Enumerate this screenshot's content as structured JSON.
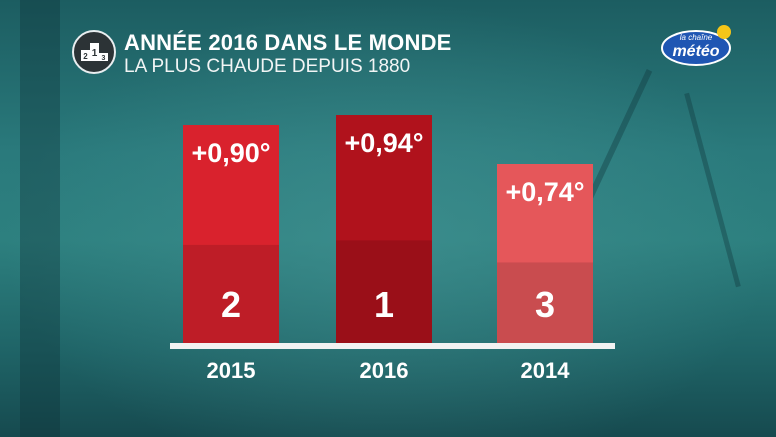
{
  "header": {
    "title": "ANNÉE 2016 DANS LE MONDE",
    "subtitle": "LA PLUS CHAUDE DEPUIS 1880"
  },
  "logo": {
    "line1": "la chaîne",
    "line2": "météo"
  },
  "colors": {
    "bar_2015": "#d9222d",
    "bar_2016": "#b0121c",
    "bar_2014": "#e5575a",
    "baseline": "#f2f2f2"
  },
  "chart_data": {
    "type": "bar",
    "categories": [
      "2015",
      "2016",
      "2014"
    ],
    "values": [
      0.9,
      0.94,
      0.74
    ],
    "value_labels": [
      "+0,90°",
      "+0,94°",
      "+0,74°"
    ],
    "ranks": [
      "2",
      "1",
      "3"
    ],
    "title": "ANNÉE 2016 DANS LE MONDE",
    "subtitle": "LA PLUS CHAUDE DEPUIS 1880",
    "xlabel": "",
    "ylabel": "",
    "grid": false,
    "legend": "none"
  }
}
